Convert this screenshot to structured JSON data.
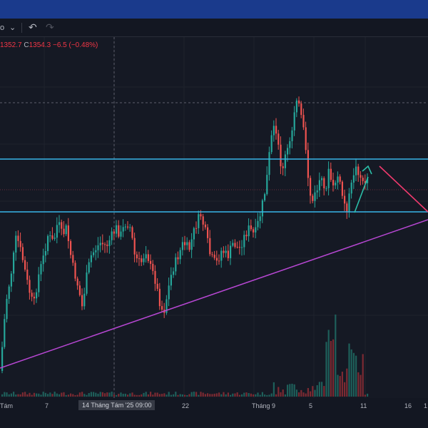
{
  "toolbar": {
    "text": "o",
    "chevron": "⌄",
    "undo_icon": "↶",
    "redo_icon": "↷"
  },
  "ohlc": {
    "l_value": "1352.7",
    "c_label": "C",
    "c_value": "1354.3",
    "change": "−6.5 (−0.48%)"
  },
  "xaxis": {
    "labels": [
      "Tám",
      "7",
      "22",
      "Tháng 9",
      "5",
      "11",
      "16",
      "1"
    ],
    "crosshair_label": "14 Tháng Tám '25  09:00"
  },
  "colors": {
    "background": "#151924",
    "up": "#26a69a",
    "down": "#ef5350",
    "hline": "#38b6e8",
    "trendline": "#b847d4",
    "arrow_up": "#2bbfa8",
    "arrow_down": "#f03a6e"
  },
  "chart_data": {
    "type": "candlestick",
    "annotations": {
      "horizontal_lines": [
        "upper resistance",
        "lower support"
      ],
      "trendline": "rising support",
      "arrows": [
        "up",
        "down"
      ]
    }
  }
}
